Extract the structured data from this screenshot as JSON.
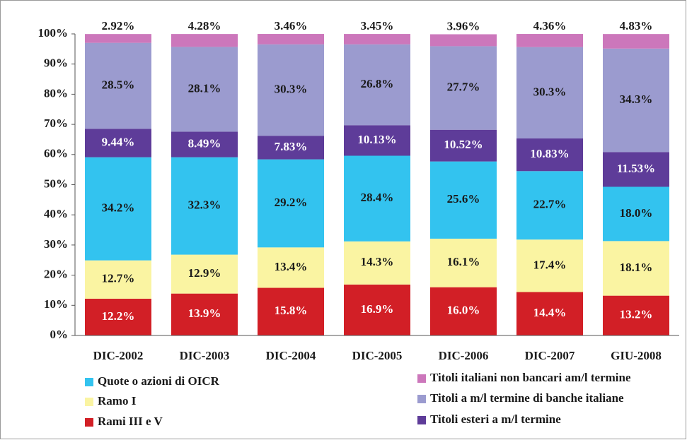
{
  "chart_data": {
    "type": "stacked_bar",
    "categories": [
      "DIC-2002",
      "DIC-2003",
      "DIC-2004",
      "DIC-2005",
      "DIC-2006",
      "DIC-2007",
      "GIU-2008"
    ],
    "ylim": [
      0,
      100
    ],
    "yticks": [
      {
        "value": 0,
        "label": "0%"
      },
      {
        "value": 10,
        "label": "10%"
      },
      {
        "value": 20,
        "label": "20%"
      },
      {
        "value": 30,
        "label": "30%"
      },
      {
        "value": 40,
        "label": "40%"
      },
      {
        "value": 50,
        "label": "50%"
      },
      {
        "value": 60,
        "label": "60%"
      },
      {
        "value": 70,
        "label": "70%"
      },
      {
        "value": 80,
        "label": "80%"
      },
      {
        "value": 90,
        "label": "90%"
      },
      {
        "value": 100,
        "label": "100%"
      }
    ],
    "grid": false,
    "series": [
      {
        "name": "Rami III e V",
        "color": "#d21f26",
        "label_color": "#ffffff",
        "values": [
          12.2,
          13.9,
          15.8,
          16.9,
          16.0,
          14.4,
          13.2
        ],
        "value_labels": [
          "12.2%",
          "13.9%",
          "15.8%",
          "16.9%",
          "16.0%",
          "14.4%",
          "13.2%"
        ]
      },
      {
        "name": "Ramo I",
        "color": "#faf4a2",
        "label_color": "#1a1a1a",
        "values": [
          12.7,
          12.9,
          13.4,
          14.3,
          16.1,
          17.4,
          18.1
        ],
        "value_labels": [
          "12.7%",
          "12.9%",
          "13.4%",
          "14.3%",
          "16.1%",
          "17.4%",
          "18.1%"
        ]
      },
      {
        "name": "Quote o azioni di OICR",
        "color": "#33c3ef",
        "label_color": "#1a1a1a",
        "values": [
          34.2,
          32.3,
          29.2,
          28.4,
          25.6,
          22.7,
          18.0
        ],
        "value_labels": [
          "34.2%",
          "32.3%",
          "29.2%",
          "28.4%",
          "25.6%",
          "22.7%",
          "18.0%"
        ]
      },
      {
        "name": "Titoli esteri a m/l termine",
        "color": "#5e3c99",
        "label_color": "#ffffff",
        "values": [
          9.44,
          8.49,
          7.83,
          10.13,
          10.52,
          10.83,
          11.53
        ],
        "value_labels": [
          "9.44%",
          "8.49%",
          "7.83%",
          "10.13%",
          "10.52%",
          "10.83%",
          "11.53%"
        ]
      },
      {
        "name": "Titoli a m/l termine di banche italiane",
        "color": "#9b9bcf",
        "label_color": "#1a1a1a",
        "values": [
          28.5,
          28.1,
          30.3,
          26.8,
          27.7,
          30.3,
          34.3
        ],
        "value_labels": [
          "28.5%",
          "28.1%",
          "30.3%",
          "26.8%",
          "27.7%",
          "30.3%",
          "34.3%"
        ]
      },
      {
        "name": "Titoli italiani non bancari am/l termine",
        "color": "#cc77bb",
        "label_color": "#1a1a1a",
        "values": [
          2.92,
          4.28,
          3.46,
          3.45,
          3.96,
          4.36,
          4.83
        ],
        "value_labels": [
          "2.92%",
          "4.28%",
          "3.46%",
          "3.45%",
          "3.96%",
          "4.36%",
          "4.83%"
        ]
      }
    ]
  }
}
